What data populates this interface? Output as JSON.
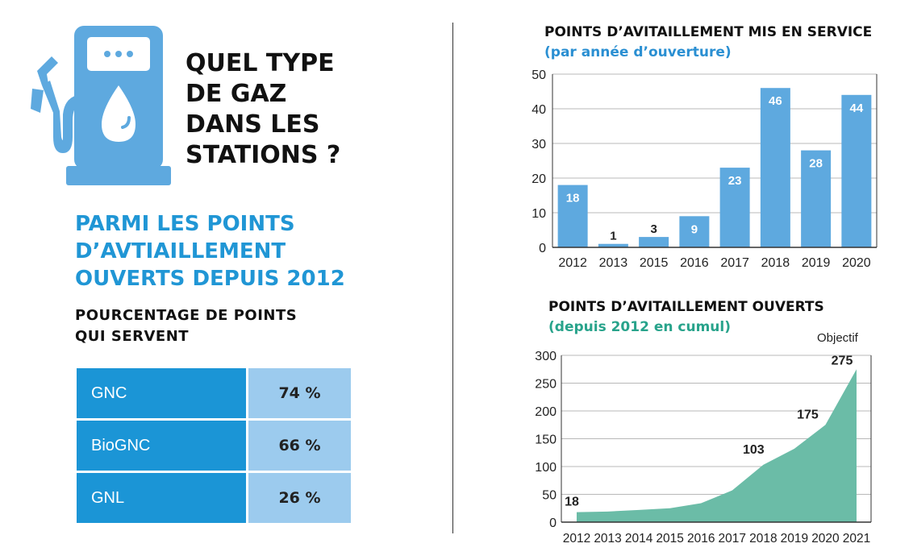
{
  "title_lines": [
    "QUEL TYPE",
    "DE GAZ",
    "DANS LES",
    "STATIONS ?"
  ],
  "subtitle_lines": [
    "PARMI LES POINTS",
    "D’AVTIAILLEMENT",
    "OUVERTS DEPUIS 2012"
  ],
  "caption_lines": [
    "POURCENTAGE DE POINTS",
    "QUI SERVENT"
  ],
  "gas_table": [
    {
      "name": "GNC",
      "value": "74 %"
    },
    {
      "name": "BioGNC",
      "value": "66 %"
    },
    {
      "name": "GNL",
      "value": "26 %"
    }
  ],
  "icons": {
    "pump": "fuel-pump-with-drop-icon"
  },
  "colors": {
    "blue": "#1b95d6",
    "light_blue": "#9ccbee",
    "bar_blue": "#5ea9df",
    "teal": "#6bbca7",
    "teal_text": "#28a38b"
  },
  "objectif_label": "Objectif",
  "chart_data": [
    {
      "type": "bar",
      "title": "POINTS D’AVITAILLEMENT MIS EN SERVICE",
      "subtitle": "(par année d’ouverture)",
      "categories": [
        "2012",
        "2013",
        "2015",
        "2016",
        "2017",
        "2018",
        "2019",
        "2020"
      ],
      "values": [
        18,
        1,
        3,
        9,
        23,
        46,
        28,
        44
      ],
      "ylim": [
        0,
        50
      ],
      "yticks": [
        0,
        10,
        20,
        30,
        40,
        50
      ],
      "grid": true
    },
    {
      "type": "area",
      "title": "POINTS D’AVITAILLEMENT OUVERTS",
      "subtitle": "(depuis 2012 en cumul)",
      "x": [
        "2012",
        "2013",
        "2014",
        "2015",
        "2016",
        "2017",
        "2018",
        "2019",
        "2020",
        "2021"
      ],
      "values": [
        18,
        19,
        22,
        25,
        34,
        57,
        103,
        132,
        175,
        275
      ],
      "labels": {
        "2012": "18",
        "2018": "103",
        "2020": "175",
        "2021": "275"
      },
      "ylim": [
        0,
        300
      ],
      "yticks": [
        0,
        50,
        100,
        150,
        200,
        250,
        300
      ],
      "grid": true
    }
  ]
}
